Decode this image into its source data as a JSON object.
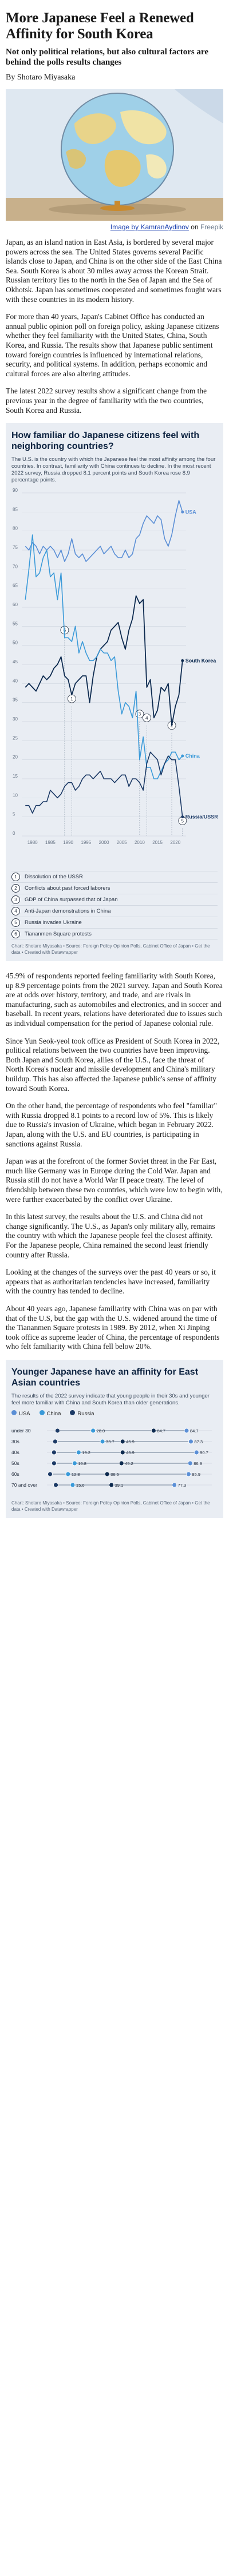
{
  "title": "More Japanese Feel a Renewed Affinity for South Korea",
  "subtitle": "Not only political relations, but also cultural factors are behind the polls results changes",
  "byline": "By Shotaro Miyasaka",
  "image_caption": {
    "text": "Image by KamranAydinov",
    "on": "on",
    "source": "Freepik"
  },
  "paragraphs": {
    "p1": "Japan, as an island nation in East Asia, is bordered by several major powers across the sea. The United States governs several Pacific islands close to Japan, and China is on the other side of the East China Sea. South Korea is about 30 miles away across the Korean Strait. Russian territory lies to the north in the Sea of Japan and the Sea of Okhotsk. Japan has sometimes cooperated and sometimes fought wars with these countries in its modern history.",
    "p2": "For more than 40 years, Japan's Cabinet Office has conducted an annual public opinion poll on foreign policy, asking Japanese citizens whether they feel familiarity with the United States, China, South Korea, and Russia. The results show that Japanese public sentiment toward foreign countries is influenced by international relations, security, and political systems. In addition, perhaps economic and cultural forces are also altering attitudes.",
    "p3": "The latest 2022 survey results show a significant change from the previous year in the degree of familiarity with the two countries, South Korea and Russia.",
    "p4": "45.9% of respondents reported feeling familiarity with South Korea, up 8.9 percentage points from the 2021 survey. Japan and South Korea are at odds over history, territory, and trade, and are rivals in manufacturing, such as automobiles and electronics, and in soccer and baseball. In recent years, relations have deteriorated due to issues such as individual compensation for the period of Japanese colonial rule.",
    "p5": "Since Yun Seok-yeol took office as President of South Korea in 2022, political relations between the two countries have been improving. Both Japan and South Korea, allies of the U.S., face the threat of North Korea's nuclear and missile development and China's military buildup. This has also affected the Japanese public's sense of affinity toward South Korea.",
    "p6": "On the other hand, the percentage of respondents who feel \"familiar\" with Russia dropped 8.1 points to a record low of 5%. This is likely due to Russia's invasion of Ukraine, which began in February 2022. Japan, along with the U.S. and EU countries, is participating in sanctions against Russia.",
    "p7": "Japan was at the forefront of the former Soviet threat in the Far East, much like Germany was in Europe during the Cold War. Japan and Russia still do not have a World War II peace treaty. The level of friendship between these two countries, which were low to begin with, were further exacerbated by the conflict over Ukraine.",
    "p8": "In this latest survey, the results about the U.S. and China did not change significantly. The U.S., as Japan's only military ally, remains the country with which the Japanese people feel the closest affinity. For the Japanese people, China remained the second least friendly country after Russia.",
    "p9": "Looking at the changes of the surveys over the past 40 years or so, it appears that as authoritarian tendencies have increased, familiarity with the country has tended to decline.",
    "p10": "About 40 years ago, Japanese familiarity with China was on par with that of the U.S, but the gap with the U.S. widened around the time of the Tiananmen Square protests in 1989. By 2012, when Xi Jinping took office as supreme leader of China, the percentage of respondents who felt familiarity with China fell below 20%."
  },
  "chart1": {
    "title": "How familiar do Japanese citizens feel with neighboring countries?",
    "desc": "The U.S. is the country with which the Japanese feel the most affinity among the four countries. In contrast, familiarity with China continues to decline. In the most recent 2022 survey, Russia dropped 8.1 percent points and South Korea rose 8.9 percentage points.",
    "events": [
      {
        "n": "1",
        "label": "Dissolution of the USSR"
      },
      {
        "n": "2",
        "label": "Conflicts about past forced laborers"
      },
      {
        "n": "3",
        "label": "GDP of China surpassed that of Japan"
      },
      {
        "n": "4",
        "label": "Anti-Japan demonstrations in China"
      },
      {
        "n": "5",
        "label": "Russia invades Ukraine"
      },
      {
        "n": "6",
        "label": "Tiananmen Square protests"
      }
    ],
    "source": "Chart: Shotaro Miyasaka • Source: Foreign Policy Opinion Polls, Cabinet Office of Japan • Get the data • Created with Datawrapper"
  },
  "chart2": {
    "title": "Younger Japanese have an affinity for East Asian countries",
    "desc": "The results of the 2022 survey indicate that young people in their 30s and younger feel more familiar with China and South Korea than older generations.",
    "source": "Chart: Shotaro Miyasaka • Source: Foreign Policy Opinion Polls, Cabinet Office of Japan • Get the data • Created with Datawrapper"
  },
  "colors": {
    "usa": "#5b8fd6",
    "south_korea": "#0d2a4f",
    "china": "#3a9ad9",
    "russia": "#1c3a66",
    "card_bg": "#e9edf3"
  },
  "chart_data": [
    {
      "type": "line",
      "title": "How familiar do Japanese citizens feel with neighboring countries?",
      "ylabel": "",
      "ylim": [
        0,
        90
      ],
      "yticks": [
        0,
        5,
        10,
        15,
        20,
        25,
        30,
        35,
        40,
        45,
        50,
        55,
        60,
        65,
        70,
        75,
        80,
        85,
        90
      ],
      "xticks": [
        "1980",
        "1985",
        "1990",
        "1995",
        "2000",
        "2005",
        "2010",
        "2015",
        "2020"
      ],
      "x": [
        1978,
        1979,
        1980,
        1981,
        1982,
        1983,
        1984,
        1985,
        1986,
        1987,
        1988,
        1989,
        1990,
        1991,
        1992,
        1993,
        1994,
        1995,
        1996,
        1997,
        1998,
        1999,
        2000,
        2001,
        2002,
        2003,
        2004,
        2005,
        2006,
        2007,
        2008,
        2009,
        2010,
        2011,
        2012,
        2013,
        2014,
        2015,
        2016,
        2017,
        2018,
        2019,
        2020,
        2021,
        2022
      ],
      "series": [
        {
          "name": "USA",
          "values": [
            76,
            75,
            77,
            76,
            74,
            76,
            75,
            76,
            75,
            73,
            75,
            72,
            74,
            78,
            74,
            73,
            74,
            72,
            73,
            74,
            75,
            76,
            74,
            75,
            76,
            74,
            73,
            73,
            75,
            73,
            74,
            78,
            79,
            82,
            84,
            83,
            82,
            84,
            83,
            78,
            76,
            79,
            84,
            88,
            85
          ]
        },
        {
          "name": "South Korea",
          "values": [
            39,
            40,
            39,
            38,
            40,
            42,
            41,
            42,
            44,
            45,
            47,
            42,
            41,
            37,
            40,
            41,
            42,
            42,
            35,
            42,
            47,
            49,
            50,
            51,
            54,
            55,
            56,
            52,
            49,
            54,
            57,
            63,
            61,
            62,
            39,
            41,
            31,
            33,
            39,
            38,
            40,
            29,
            34,
            37,
            46
          ]
        },
        {
          "name": "China",
          "values": [
            62,
            70,
            79,
            68,
            69,
            73,
            75,
            68,
            69,
            62,
            69,
            52,
            52,
            51,
            55,
            48,
            51,
            48,
            46,
            46,
            47,
            49,
            48,
            48,
            46,
            47,
            38,
            32,
            35,
            34,
            31,
            38,
            20,
            26,
            18,
            18,
            15,
            15,
            17,
            19,
            20,
            22,
            22,
            20,
            21
          ]
        },
        {
          "name": "Russia/USSR",
          "values": [
            8,
            8,
            6,
            8,
            8,
            9,
            9,
            12,
            11,
            10,
            11,
            13,
            14,
            14,
            12,
            13,
            15,
            16,
            16,
            15,
            16,
            17,
            15,
            15,
            15,
            14,
            15,
            16,
            16,
            13,
            15,
            15,
            14,
            12,
            19,
            22,
            21,
            20,
            16,
            19,
            21,
            20,
            20,
            13,
            5
          ]
        }
      ],
      "labels": [
        "USA",
        "South Korea",
        "China",
        "Russia/USSR"
      ]
    },
    {
      "type": "bar",
      "title": "Younger Japanese have an affinity for East Asian countries",
      "categories": [
        "under 30",
        "30s",
        "40s",
        "50s",
        "60s",
        "70 and over"
      ],
      "series": [
        {
          "name": "USA",
          "values": [
            84.7,
            87.3,
            90.7,
            86.9,
            85.9,
            77.3
          ]
        },
        {
          "name": "China",
          "values": [
            28.0,
            33.7,
            19.2,
            16.8,
            12.8,
            15.6
          ]
        },
        {
          "name": "Russia",
          "values": [
            6.4,
            5.0,
            4.3,
            4.3,
            1.9,
            5.4
          ]
        },
        {
          "name": "South Korea",
          "values": [
            64.7,
            45.9,
            45.9,
            45.2,
            36.5,
            39.1
          ]
        }
      ],
      "xlim": [
        0,
        100
      ]
    }
  ]
}
